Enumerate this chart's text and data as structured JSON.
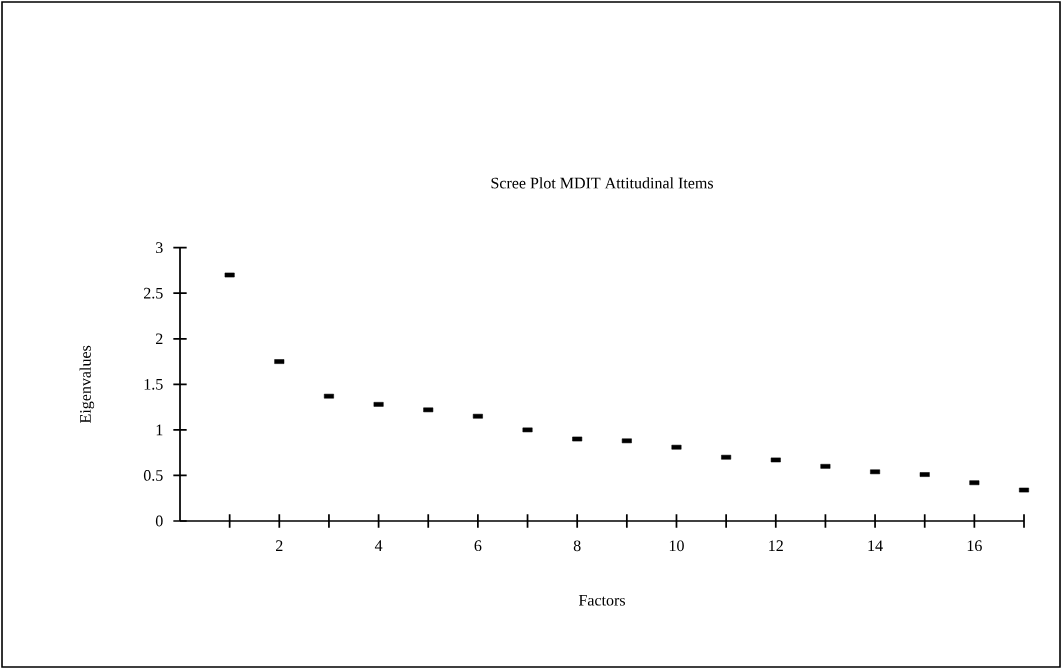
{
  "chart_data": {
    "type": "scatter",
    "title": "Scree Plot MDIT Attitudinal Items",
    "xlabel": "Factors",
    "ylabel": "Eigenvalues",
    "x": [
      1,
      2,
      3,
      4,
      5,
      6,
      7,
      8,
      9,
      10,
      11,
      12,
      13,
      14,
      15,
      16,
      17
    ],
    "values": [
      2.7,
      1.75,
      1.37,
      1.28,
      1.22,
      1.15,
      1.0,
      0.9,
      0.88,
      0.81,
      0.7,
      0.67,
      0.6,
      0.54,
      0.51,
      0.42,
      0.34
    ],
    "color": "#000000",
    "marker": "square",
    "xlim": [
      0,
      17
    ],
    "xticks": [
      {
        "value": 1,
        "label": null
      },
      2,
      {
        "value": 3,
        "label": null
      },
      4,
      {
        "value": 5,
        "label": null
      },
      6,
      {
        "value": 7,
        "label": null
      },
      8,
      {
        "value": 9,
        "label": null
      },
      10,
      {
        "value": 11,
        "label": null
      },
      12,
      {
        "value": 13,
        "label": null
      },
      14,
      {
        "value": 15,
        "label": null
      },
      16,
      {
        "value": 17,
        "label": null
      }
    ],
    "ylim": [
      0,
      3
    ],
    "yticks": [
      0,
      0.5,
      1,
      1.5,
      2,
      2.5,
      3
    ],
    "grid": false
  }
}
